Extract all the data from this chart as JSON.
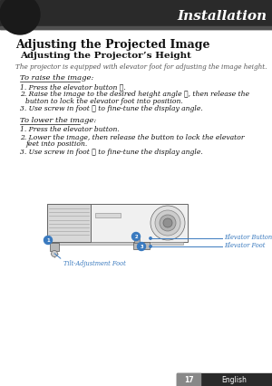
{
  "bg_color": "#ffffff",
  "header_text": "Installation",
  "header_text_color": "#ffffff",
  "title_main": "Adjusting the Projected Image",
  "title_sub": "Adjusting the Projector’s Height",
  "intro_text": "The projector is equipped with elevator foot for adjusting the image height.",
  "section1_title": "To raise the image:",
  "section1_line1": "1. Press the elevator button ①.",
  "section1_line2a": "2. Raise the image to the desired height angle ②, then release the",
  "section1_line2b": "    button to lock the elevator foot into position.",
  "section1_line3": "3. Use screw in foot ③ to fine-tune the display angle.",
  "section2_title": "To lower the image:",
  "section2_line1": "1. Press the elevator button.",
  "section2_line2a": "2. Lower the image, then release the button to lock the elevator",
  "section2_line2b": "    feet into position.",
  "section2_line3": "3. Use screw in foot ③ to fine-tune the display angle.",
  "label1": "Tilt-Adjustment Foot",
  "label2": "Elevator Button",
  "label3": "Elevator Foot",
  "page_num": "17",
  "page_lang": "English",
  "accent_color": "#3a7abf",
  "header_dark": "#2a2a2a",
  "header_mid": "#404040",
  "diagram_body": "#f0f0f0",
  "diagram_edge": "#666666",
  "diagram_vent": "#d8d8d8"
}
